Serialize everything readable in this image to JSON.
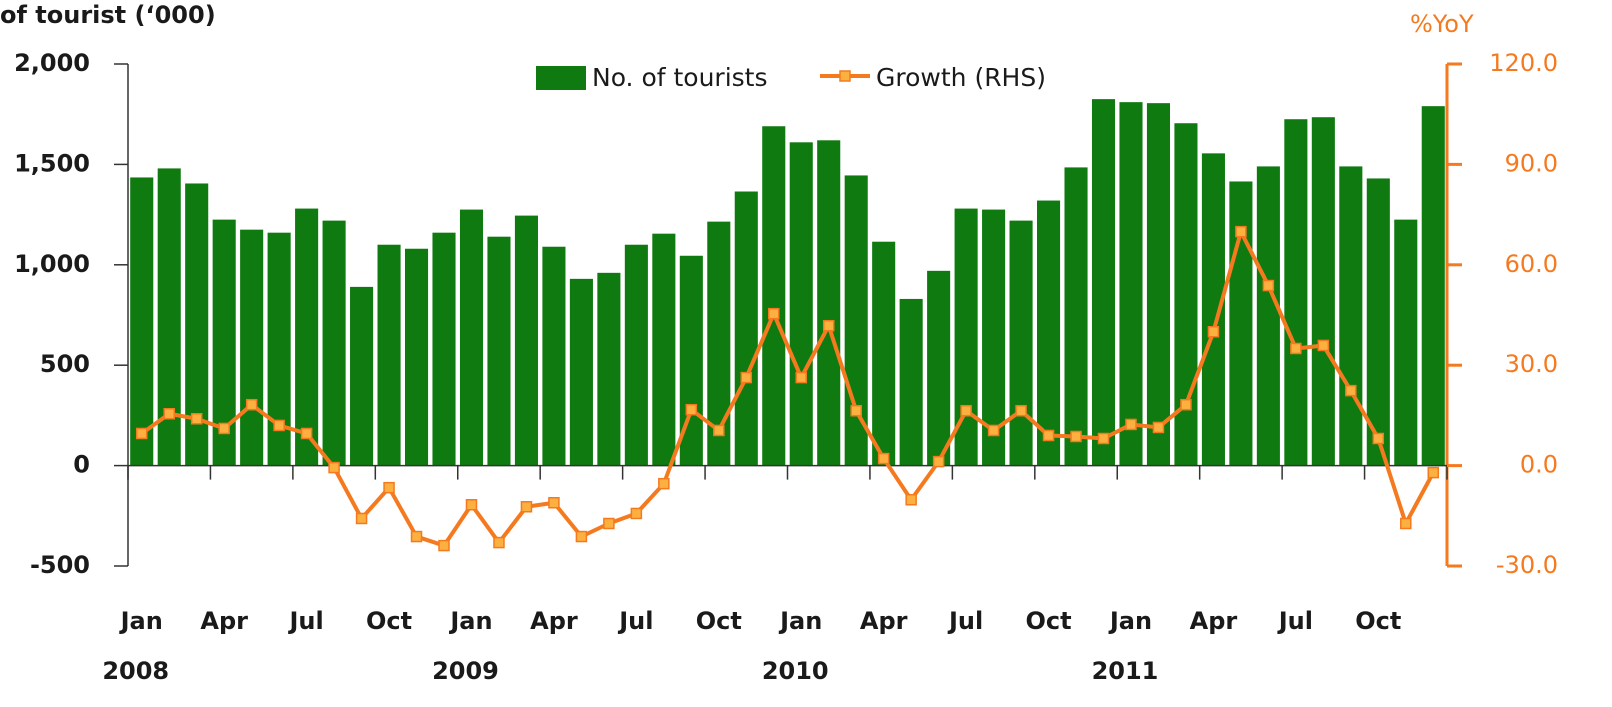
{
  "chart_data": {
    "type": "bar_line",
    "y_label": "of tourist (‘000)",
    "y2_label": "%YoY",
    "categories": [
      "Jan",
      null,
      null,
      "Apr",
      null,
      null,
      "Jul",
      null,
      null,
      "Oct",
      null,
      null,
      "Jan",
      null,
      null,
      "Apr",
      null,
      null,
      "Jul",
      null,
      null,
      "Oct",
      null,
      null,
      "Jan",
      null,
      null,
      "Apr",
      null,
      null,
      "Jul",
      null,
      null,
      "Oct",
      null,
      null,
      "Jan",
      null,
      null,
      "Apr",
      null,
      null,
      "Jul",
      null,
      null,
      "Oct",
      null,
      null
    ],
    "years": [
      "2008",
      "2009",
      "2010",
      "2011"
    ],
    "series": [
      {
        "name": "No. of tourists",
        "type": "bar",
        "color": "#0f7a0f",
        "values": [
          1435,
          1480,
          1405,
          1225,
          1175,
          1160,
          1280,
          1220,
          890,
          1100,
          1080,
          1160,
          1275,
          1140,
          1245,
          1090,
          930,
          960,
          1100,
          1155,
          1045,
          1215,
          1365,
          1690,
          1610,
          1620,
          1445,
          1115,
          830,
          970,
          1280,
          1275,
          1220,
          1320,
          1485,
          1825,
          1810,
          1805,
          1705,
          1555,
          1415,
          1490,
          1725,
          1735,
          1490,
          1430,
          1225,
          1790
        ]
      },
      {
        "name": "Growth (RHS)",
        "type": "line",
        "axis": "y2",
        "color": "#f57a1f",
        "marker_fill": "#fbb040",
        "values": [
          9.6,
          15.5,
          14.0,
          11.1,
          18.2,
          12.0,
          9.6,
          -0.6,
          -15.8,
          -6.6,
          -21.2,
          -23.9,
          -11.7,
          -23.0,
          -12.3,
          -11.1,
          -21.2,
          -17.3,
          -14.3,
          -5.4,
          16.7,
          10.5,
          26.3,
          45.4,
          26.3,
          41.8,
          16.4,
          2.1,
          -10.2,
          1.2,
          16.4,
          10.5,
          16.4,
          9.0,
          8.7,
          8.1,
          12.3,
          11.4,
          18.2,
          40.0,
          69.9,
          53.8,
          35.0,
          35.9,
          22.4,
          8.1,
          -17.3,
          -2.1
        ]
      }
    ],
    "ylim": [
      -500,
      2000
    ],
    "yticks": [
      -500,
      0,
      500,
      {
        "value": 1000,
        "label": "1,000"
      },
      {
        "value": 1500,
        "label": "1,500"
      },
      {
        "value": 2000,
        "label": "2,000"
      }
    ],
    "y2lim": [
      -30,
      120
    ],
    "y2ticks": [
      {
        "value": -30,
        "label": "-30.0"
      },
      {
        "value": 0,
        "label": "0.0"
      },
      {
        "value": 30,
        "label": "30.0"
      },
      {
        "value": 60,
        "label": "60.0"
      },
      {
        "value": 90,
        "label": "90.0"
      },
      {
        "value": 120,
        "label": "120.0"
      }
    ],
    "legend": "top"
  }
}
